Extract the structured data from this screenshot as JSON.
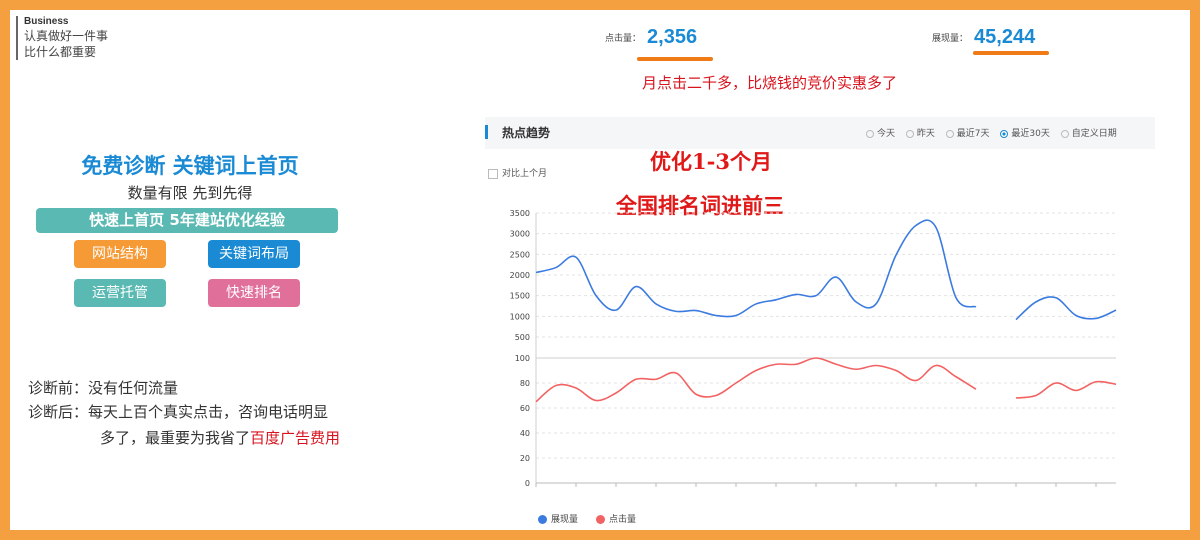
{
  "brand": {
    "title": "Business",
    "line1": "认真做好一件事",
    "line2": "比什么都重要"
  },
  "promo": {
    "title": "免费诊断  关键词上首页",
    "subtitle": "数量有限  先到先得",
    "bar": "快速上首页  5年建站优化经验",
    "buttons": [
      "网站结构",
      "关键词布局",
      "运营托管",
      "快速排名"
    ]
  },
  "diagnosis": {
    "before": "诊断前：没有任何流量",
    "after_prefix": "诊断后：每天上百个真实点击，咨询电话明显",
    "after_line2": "多了，最重要为我省了",
    "after_highlight": "百度广告费用"
  },
  "metrics": {
    "clicks": {
      "label": "点击量：",
      "value": "2,356"
    },
    "impressions": {
      "label": "展现量：",
      "value": "45,244"
    }
  },
  "caption": "月点击二千多，比烧钱的竞价实惠多了",
  "overlay": {
    "line1": "优化1-3个月",
    "line2": "全国排名词进前三"
  },
  "card": {
    "title": "热点趋势",
    "ranges": [
      "今天",
      "昨天",
      "最近7天",
      "最近30天",
      "自定义日期"
    ],
    "selected_range": "最近30天",
    "compare_label": "对比上个月"
  },
  "colors": {
    "impressions": "#3b7be0",
    "clicks": "#f26262",
    "accent": "#1a8ad4",
    "frame": "#f5a040"
  },
  "chart_data": {
    "type": "line",
    "x_labels": [
      "01-19",
      "01-21",
      "01-23",
      "01-25",
      "01-27",
      "01-29",
      "01-31",
      "02-02",
      "02-04",
      "02-06",
      "02-08",
      "02-10",
      "02-12",
      "02-14",
      "02-16"
    ],
    "x": [
      "01-19",
      "01-20",
      "01-21",
      "01-22",
      "01-23",
      "01-24",
      "01-25",
      "01-26",
      "01-27",
      "01-28",
      "01-29",
      "01-30",
      "01-31",
      "02-01",
      "02-02",
      "02-03",
      "02-04",
      "02-05",
      "02-06",
      "02-07",
      "02-08",
      "02-09",
      "02-10",
      "02-11",
      "02-12",
      "02-13",
      "02-14",
      "02-15",
      "02-16",
      "02-17"
    ],
    "top_axis": {
      "ticks": [
        1000,
        1500,
        2000,
        2500,
        3000,
        3500
      ],
      "extra": 500,
      "range": [
        500,
        3500
      ]
    },
    "bottom_axis": {
      "ticks": [
        0,
        20,
        40,
        60,
        80,
        100
      ],
      "range": [
        0,
        100
      ]
    },
    "series": [
      {
        "name": "展现量",
        "axis": "top",
        "values": [
          2060,
          2180,
          2430,
          1500,
          1150,
          1720,
          1300,
          1120,
          1140,
          1020,
          1020,
          1300,
          1400,
          1530,
          1500,
          1950,
          1350,
          1300,
          2480,
          3200,
          3150,
          1450,
          1230,
          null,
          920,
          1350,
          1450,
          1020,
          950,
          1150
        ]
      },
      {
        "name": "点击量",
        "axis": "bottom",
        "values": [
          65,
          78,
          76,
          66,
          72,
          83,
          83,
          88,
          71,
          70,
          80,
          90,
          95,
          95,
          100,
          95,
          91,
          94,
          90,
          82,
          94,
          85,
          75,
          null,
          68,
          70,
          80,
          74,
          81,
          79
        ]
      }
    ],
    "legend": "bottom-left",
    "grid": true
  }
}
